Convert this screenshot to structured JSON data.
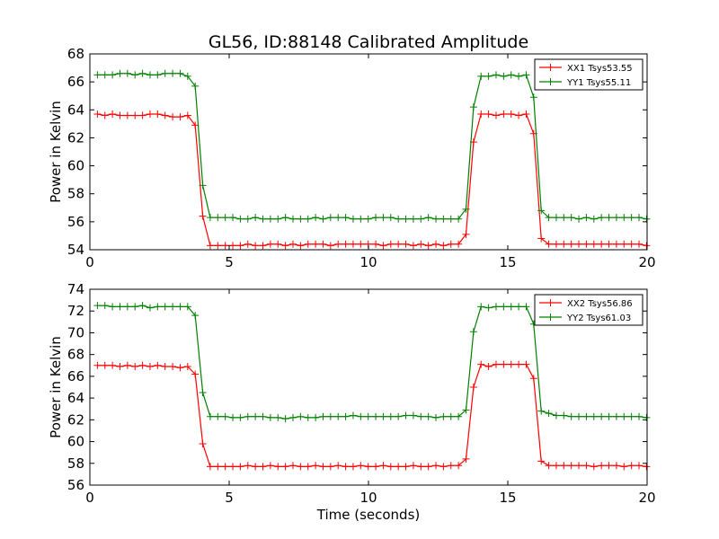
{
  "figure": {
    "title": "GL56, ID:88148 Calibrated Amplitude",
    "xlabel": "Time (seconds)"
  },
  "colors": {
    "XX": "#ff0000",
    "YY": "#008000"
  },
  "chart_data": [
    {
      "type": "line",
      "title": "GL56, ID:88148 Calibrated Amplitude",
      "xlabel": "",
      "ylabel": "Power in Kelvin",
      "xlim": [
        0,
        20
      ],
      "ylim": [
        54,
        68
      ],
      "xticks": [
        0,
        5,
        10,
        15,
        20
      ],
      "yticks": [
        54,
        56,
        58,
        60,
        62,
        64,
        66,
        68
      ],
      "grid": false,
      "legend": "top-right",
      "x": [
        0.27,
        0.54,
        0.81,
        1.08,
        1.35,
        1.62,
        1.89,
        2.16,
        2.43,
        2.7,
        2.97,
        3.24,
        3.51,
        3.78,
        4.05,
        4.32,
        4.59,
        4.86,
        5.13,
        5.4,
        5.67,
        5.94,
        6.21,
        6.48,
        6.75,
        7.02,
        7.29,
        7.56,
        7.83,
        8.1,
        8.37,
        8.64,
        8.91,
        9.18,
        9.45,
        9.72,
        9.99,
        10.26,
        10.53,
        10.8,
        11.07,
        11.34,
        11.61,
        11.88,
        12.15,
        12.42,
        12.69,
        12.96,
        13.23,
        13.5,
        13.77,
        14.04,
        14.31,
        14.58,
        14.85,
        15.12,
        15.39,
        15.66,
        15.93,
        16.2,
        16.47,
        16.74,
        17.01,
        17.28,
        17.55,
        17.82,
        18.09,
        18.36,
        18.63,
        18.9,
        19.17,
        19.44,
        19.71,
        19.98
      ],
      "series": [
        {
          "name": "XX1 Tsys53.55",
          "color_key": "XX",
          "values": [
            63.7,
            63.6,
            63.7,
            63.6,
            63.6,
            63.6,
            63.6,
            63.7,
            63.7,
            63.6,
            63.5,
            63.5,
            63.6,
            62.9,
            56.4,
            54.3,
            54.3,
            54.3,
            54.3,
            54.3,
            54.4,
            54.3,
            54.3,
            54.4,
            54.4,
            54.3,
            54.4,
            54.3,
            54.4,
            54.4,
            54.4,
            54.3,
            54.4,
            54.4,
            54.4,
            54.4,
            54.4,
            54.4,
            54.3,
            54.4,
            54.4,
            54.4,
            54.3,
            54.4,
            54.3,
            54.4,
            54.3,
            54.4,
            54.4,
            55.1,
            61.7,
            63.7,
            63.7,
            63.6,
            63.7,
            63.7,
            63.6,
            63.7,
            62.3,
            54.8,
            54.4,
            54.4,
            54.4,
            54.4,
            54.4,
            54.4,
            54.4,
            54.4,
            54.4,
            54.4,
            54.4,
            54.4,
            54.4,
            54.3
          ]
        },
        {
          "name": "YY1 Tsys55.11",
          "color_key": "YY",
          "values": [
            66.5,
            66.5,
            66.5,
            66.6,
            66.6,
            66.5,
            66.6,
            66.5,
            66.5,
            66.6,
            66.6,
            66.6,
            66.4,
            65.7,
            58.6,
            56.3,
            56.3,
            56.3,
            56.3,
            56.2,
            56.2,
            56.3,
            56.2,
            56.2,
            56.2,
            56.3,
            56.2,
            56.2,
            56.2,
            56.3,
            56.2,
            56.3,
            56.3,
            56.3,
            56.2,
            56.2,
            56.2,
            56.3,
            56.3,
            56.3,
            56.2,
            56.2,
            56.2,
            56.2,
            56.3,
            56.2,
            56.2,
            56.2,
            56.2,
            56.9,
            64.2,
            66.4,
            66.4,
            66.5,
            66.4,
            66.5,
            66.4,
            66.5,
            64.9,
            56.8,
            56.3,
            56.3,
            56.3,
            56.3,
            56.2,
            56.3,
            56.2,
            56.3,
            56.3,
            56.3,
            56.3,
            56.3,
            56.3,
            56.2
          ]
        }
      ]
    },
    {
      "type": "line",
      "title": "",
      "xlabel": "Time (seconds)",
      "ylabel": "Power in Kelvin",
      "xlim": [
        0,
        20
      ],
      "ylim": [
        56,
        74
      ],
      "xticks": [
        0,
        5,
        10,
        15,
        20
      ],
      "yticks": [
        56,
        58,
        60,
        62,
        64,
        66,
        68,
        70,
        72,
        74
      ],
      "grid": false,
      "legend": "top-right",
      "x": [
        0.27,
        0.54,
        0.81,
        1.08,
        1.35,
        1.62,
        1.89,
        2.16,
        2.43,
        2.7,
        2.97,
        3.24,
        3.51,
        3.78,
        4.05,
        4.32,
        4.59,
        4.86,
        5.13,
        5.4,
        5.67,
        5.94,
        6.21,
        6.48,
        6.75,
        7.02,
        7.29,
        7.56,
        7.83,
        8.1,
        8.37,
        8.64,
        8.91,
        9.18,
        9.45,
        9.72,
        9.99,
        10.26,
        10.53,
        10.8,
        11.07,
        11.34,
        11.61,
        11.88,
        12.15,
        12.42,
        12.69,
        12.96,
        13.23,
        13.5,
        13.77,
        14.04,
        14.31,
        14.58,
        14.85,
        15.12,
        15.39,
        15.66,
        15.93,
        16.2,
        16.47,
        16.74,
        17.01,
        17.28,
        17.55,
        17.82,
        18.09,
        18.36,
        18.63,
        18.9,
        19.17,
        19.44,
        19.71,
        19.98
      ],
      "series": [
        {
          "name": "XX2 Tsys56.86",
          "color_key": "XX",
          "values": [
            67.0,
            67.0,
            67.0,
            66.9,
            67.0,
            66.9,
            67.0,
            66.9,
            67.0,
            66.9,
            66.9,
            66.8,
            66.9,
            66.2,
            59.8,
            57.7,
            57.7,
            57.7,
            57.7,
            57.7,
            57.8,
            57.7,
            57.7,
            57.8,
            57.7,
            57.7,
            57.8,
            57.7,
            57.7,
            57.8,
            57.7,
            57.7,
            57.8,
            57.7,
            57.7,
            57.8,
            57.7,
            57.7,
            57.8,
            57.7,
            57.7,
            57.7,
            57.8,
            57.7,
            57.7,
            57.8,
            57.7,
            57.8,
            57.8,
            58.4,
            65.0,
            67.1,
            66.9,
            67.1,
            67.1,
            67.1,
            67.1,
            67.1,
            65.8,
            58.2,
            57.8,
            57.8,
            57.8,
            57.8,
            57.8,
            57.8,
            57.7,
            57.8,
            57.8,
            57.8,
            57.7,
            57.8,
            57.8,
            57.7
          ]
        },
        {
          "name": "YY2 Tsys61.03",
          "color_key": "YY",
          "values": [
            72.5,
            72.5,
            72.4,
            72.4,
            72.4,
            72.4,
            72.5,
            72.3,
            72.4,
            72.4,
            72.4,
            72.4,
            72.4,
            71.6,
            64.5,
            62.3,
            62.3,
            62.3,
            62.2,
            62.2,
            62.3,
            62.3,
            62.3,
            62.2,
            62.2,
            62.1,
            62.2,
            62.3,
            62.2,
            62.2,
            62.3,
            62.3,
            62.3,
            62.3,
            62.4,
            62.3,
            62.3,
            62.3,
            62.3,
            62.3,
            62.3,
            62.4,
            62.4,
            62.3,
            62.3,
            62.2,
            62.3,
            62.3,
            62.3,
            62.9,
            70.1,
            72.4,
            72.3,
            72.4,
            72.4,
            72.4,
            72.4,
            72.4,
            70.8,
            62.8,
            62.6,
            62.4,
            62.4,
            62.3,
            62.3,
            62.3,
            62.3,
            62.3,
            62.3,
            62.3,
            62.3,
            62.3,
            62.3,
            62.2
          ]
        }
      ]
    }
  ]
}
